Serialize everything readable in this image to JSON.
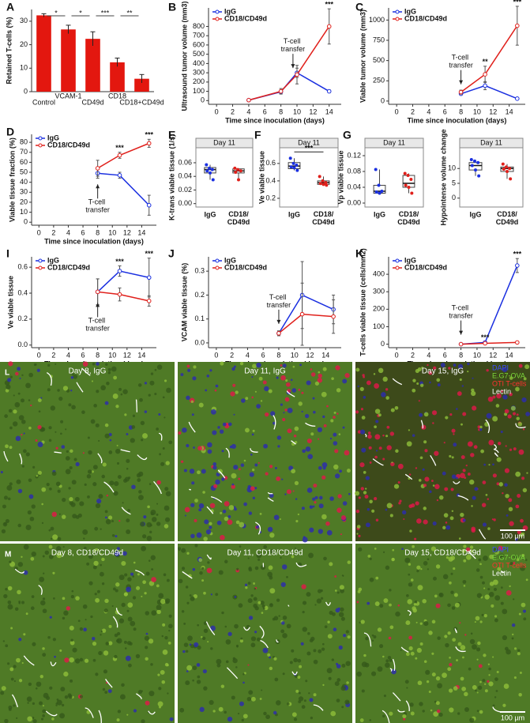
{
  "chart_data": [
    {
      "type": "bar",
      "panel": "A",
      "ylabel": "Retained T-cells (%)",
      "categories": [
        "Control",
        "VCAM-1",
        "CD49d",
        "CD18",
        "CD18+CD49d"
      ],
      "values": [
        32.5,
        26.5,
        22.5,
        12.5,
        5.5
      ],
      "errors": [
        0.7,
        1.8,
        3,
        1.8,
        1.8
      ],
      "color": "#e3170f",
      "ylim": [
        0,
        35
      ],
      "yticks": [
        0,
        10,
        20,
        30
      ],
      "significance": [
        {
          "from": 0,
          "to": 1,
          "label": "*"
        },
        {
          "from": 1,
          "to": 2,
          "label": "*"
        },
        {
          "from": 2,
          "to": 3,
          "label": "***"
        },
        {
          "from": 3,
          "to": 4,
          "label": "**"
        }
      ]
    },
    {
      "type": "line",
      "panel": "B",
      "ylabel": "Ultrasound tumor volume (mm3)",
      "xlabel": "Time since inoculation (days)",
      "xlim": [
        -1,
        15.5
      ],
      "xticks": [
        0,
        2,
        4,
        6,
        8,
        10,
        12,
        14
      ],
      "ylim": [
        -40,
        1000
      ],
      "yticks": [
        0,
        100,
        200,
        300,
        400,
        500,
        600,
        700,
        800
      ],
      "legend": "upper left",
      "series": [
        {
          "name": "IgG",
          "color": "#1a2fe0",
          "x": [
            4,
            8,
            10,
            14
          ],
          "values": [
            5,
            95,
            300,
            100
          ],
          "errors": [
            2,
            20,
            50,
            15
          ]
        },
        {
          "name": "CD18/CD49d",
          "color": "#e0201b",
          "x": [
            4,
            8,
            10,
            14
          ],
          "values": [
            5,
            100,
            280,
            800
          ],
          "errors": [
            2,
            30,
            100,
            190
          ]
        }
      ],
      "stars": [
        {
          "x": 14,
          "label": "***"
        }
      ],
      "annotation": {
        "x": 9.5,
        "label": "T-cell transfer"
      }
    },
    {
      "type": "line",
      "panel": "C",
      "ylabel": "Viable tumor volume (mm3)",
      "xlabel": "Time since inoculation (days)",
      "xlim": [
        -1,
        16
      ],
      "xticks": [
        0,
        2,
        4,
        6,
        8,
        10,
        12,
        14
      ],
      "ylim": [
        -40,
        1150
      ],
      "yticks": [
        0,
        250,
        500,
        750,
        1000
      ],
      "legend": "upper left",
      "series": [
        {
          "name": "IgG",
          "color": "#1a2fe0",
          "x": [
            8,
            11,
            15
          ],
          "values": [
            90,
            190,
            30
          ],
          "errors": [
            15,
            50,
            15
          ]
        },
        {
          "name": "CD18/CD49d",
          "color": "#e0201b",
          "x": [
            8,
            11,
            15
          ],
          "values": [
            110,
            330,
            930
          ],
          "errors": [
            25,
            100,
            240
          ]
        }
      ],
      "stars": [
        {
          "x": 11,
          "label": "**"
        },
        {
          "x": 15,
          "label": "***"
        }
      ],
      "annotation": {
        "x": 8,
        "label": "T-cell transfer"
      }
    },
    {
      "type": "line",
      "panel": "D",
      "ylabel": "Viable tissue fraction (%)",
      "xlabel": "Time since inoculation (days)",
      "xlim": [
        -1,
        16
      ],
      "xticks": [
        0,
        2,
        4,
        6,
        8,
        10,
        12,
        14
      ],
      "ylim": [
        -3,
        88
      ],
      "yticks": [
        0,
        10,
        20,
        30,
        40,
        50,
        60,
        70,
        80
      ],
      "legend": "upper left",
      "series": [
        {
          "name": "IgG",
          "color": "#1a2fe0",
          "x": [
            8,
            11,
            15
          ],
          "values": [
            49,
            47,
            17
          ],
          "errors": [
            5,
            3,
            10
          ]
        },
        {
          "name": "CD18/CD49d",
          "color": "#e0201b",
          "x": [
            8,
            11,
            15
          ],
          "values": [
            54,
            67,
            79
          ],
          "errors": [
            8,
            3,
            4
          ]
        }
      ],
      "stars": [
        {
          "x": 11,
          "label": "***"
        },
        {
          "x": 15,
          "label": "***"
        }
      ],
      "annotation": {
        "x": 8,
        "label": "T-cell transfer",
        "arrow": "up"
      }
    },
    {
      "type": "box",
      "panel": "E",
      "title": "Day 11",
      "ylabel": "K-trans viable tissue (1/s)",
      "categories": [
        "IgG",
        "CD18/CD49d"
      ],
      "colors": [
        "#1a2fe0",
        "#e0201b"
      ],
      "ylim": [
        -0.005,
        0.082
      ],
      "yticks": [
        {
          "value": 0,
          "label": "0.00"
        },
        {
          "value": 0.02,
          "label": "0.02"
        },
        {
          "value": 0.04,
          "label": "0.04"
        },
        {
          "value": 0.06,
          "label": "0.06"
        }
      ],
      "boxes": [
        {
          "min": 0.035,
          "q1": 0.045,
          "median": 0.05,
          "q3": 0.053,
          "max": 0.057
        },
        {
          "min": 0.035,
          "q1": 0.045,
          "median": 0.048,
          "q3": 0.051,
          "max": 0.052
        }
      ],
      "points": [
        [
          0.057,
          0.052,
          0.05,
          0.048,
          0.045,
          0.035
        ],
        [
          0.052,
          0.05,
          0.048,
          0.046,
          0.035
        ]
      ]
    },
    {
      "type": "box",
      "panel": "F",
      "title": "Day 11",
      "ylabel": "Ve viable tissue",
      "categories": [
        "IgG",
        "CD18/CD49d"
      ],
      "colors": [
        "#1a2fe0",
        "#e0201b"
      ],
      "ylim": [
        0.1,
        0.78
      ],
      "yticks": [
        0.2,
        0.4,
        0.6
      ],
      "boxes": [
        {
          "min": 0.52,
          "q1": 0.54,
          "median": 0.57,
          "q3": 0.61,
          "max": 0.66
        },
        {
          "min": 0.35,
          "q1": 0.36,
          "median": 0.38,
          "q3": 0.4,
          "max": 0.45
        }
      ],
      "points": [
        [
          0.66,
          0.6,
          0.58,
          0.56,
          0.55,
          0.52
        ],
        [
          0.45,
          0.4,
          0.38,
          0.37,
          0.36,
          0.35
        ]
      ],
      "significance": [
        {
          "from": 0,
          "to": 1,
          "label": "***"
        }
      ]
    },
    {
      "type": "box",
      "panel": "G",
      "title": "Day 11",
      "ylabel": "Vp viable tissue",
      "categories": [
        "IgG",
        "CD18/CD49d"
      ],
      "colors": [
        "#1a2fe0",
        "#e0201b"
      ],
      "ylim": [
        -0.01,
        0.14
      ],
      "yticks": [
        {
          "value": 0,
          "label": "0.00"
        },
        {
          "value": 0.04,
          "label": "0.04"
        },
        {
          "value": 0.08,
          "label": "0.08"
        },
        {
          "value": 0.12,
          "label": "0.12"
        }
      ],
      "boxes": [
        {
          "min": 0.025,
          "q1": 0.025,
          "median": 0.03,
          "q3": 0.045,
          "max": 0.085
        },
        {
          "min": 0.025,
          "q1": 0.04,
          "median": 0.05,
          "q3": 0.07,
          "max": 0.075
        }
      ],
      "points": [
        [
          0.085,
          0.045,
          0.03,
          0.028,
          0.025
        ],
        [
          0.075,
          0.07,
          0.06,
          0.045,
          0.04,
          0.025
        ]
      ]
    },
    {
      "type": "box",
      "title": "Day 11",
      "ylabel": "Hypointense volume change",
      "categories": [
        "IgG",
        "CD18/CD49d"
      ],
      "colors": [
        "#1a2fe0",
        "#e0201b"
      ],
      "ylim": [
        -3,
        17
      ],
      "yticks": [
        0,
        5,
        10
      ],
      "boxes": [
        {
          "min": 7.5,
          "q1": 9.5,
          "median": 11,
          "q3": 12,
          "max": 13
        },
        {
          "min": 6.5,
          "q1": 9,
          "median": 10,
          "q3": 10.5,
          "max": 11.5
        }
      ],
      "points": [
        [
          13,
          12.5,
          12,
          11,
          9.5,
          7.5
        ],
        [
          11.5,
          10.5,
          10,
          9.8,
          9,
          6.5
        ]
      ]
    },
    {
      "type": "line",
      "panel": "I",
      "ylabel": "Ve viable tissue",
      "xlabel": "Time since inoculation (days)",
      "xlim": [
        -1,
        16
      ],
      "xticks": [
        0,
        2,
        4,
        6,
        8,
        10,
        12,
        14
      ],
      "ylim": [
        -0.02,
        0.68
      ],
      "yticks": [
        {
          "value": 0,
          "label": "0.0"
        },
        0.2,
        0.4,
        0.6
      ],
      "legend": "upper left",
      "series": [
        {
          "name": "IgG",
          "color": "#1a2fe0",
          "x": [
            8,
            11,
            15
          ],
          "values": [
            0.41,
            0.57,
            0.52
          ],
          "errors": [
            0.1,
            0.04,
            0.15
          ]
        },
        {
          "name": "CD18/CD49d",
          "color": "#e0201b",
          "x": [
            8,
            11,
            15
          ],
          "values": [
            0.41,
            0.39,
            0.34
          ],
          "errors": [
            0.1,
            0.05,
            0.04
          ]
        }
      ],
      "stars": [
        {
          "x": 11,
          "label": "***"
        },
        {
          "x": 15,
          "label": "***"
        }
      ],
      "annotation": {
        "x": 8,
        "label": "T-cell transfer",
        "arrow": "up"
      }
    },
    {
      "type": "line",
      "panel": "J",
      "ylabel": "VCAM viable tissue (%)",
      "xlabel": "Time since inoculation (days)",
      "xlim": [
        -1,
        16
      ],
      "xticks": [
        0,
        2,
        4,
        6,
        8,
        10,
        12,
        14
      ],
      "ylim": [
        -0.02,
        0.36
      ],
      "yticks": [
        {
          "value": 0,
          "label": "0.0"
        },
        0.1,
        0.2,
        0.3
      ],
      "legend": "upper left",
      "series": [
        {
          "name": "IgG",
          "color": "#1a2fe0",
          "x": [
            8,
            11,
            15
          ],
          "values": [
            0.04,
            0.2,
            0.14
          ],
          "errors": [
            0.01,
            0.14,
            0.06
          ]
        },
        {
          "name": "CD18/CD49d",
          "color": "#e0201b",
          "x": [
            8,
            11,
            15
          ],
          "values": [
            0.04,
            0.12,
            0.11
          ],
          "errors": [
            0.01,
            0.13,
            0.07
          ]
        }
      ],
      "stars": [],
      "annotation": {
        "x": 8,
        "label": "T-cell transfer"
      }
    },
    {
      "type": "line",
      "panel": "K",
      "ylabel": "T-cells viable tissue (cells/mm2)",
      "xlabel": "Time since inoculation (days)",
      "xlim": [
        -1,
        16
      ],
      "xticks": [
        0,
        2,
        4,
        6,
        8,
        10,
        12,
        14
      ],
      "ylim": [
        -20,
        500
      ],
      "yticks": [
        0,
        100,
        200,
        300,
        400
      ],
      "legend": "upper left",
      "series": [
        {
          "name": "IgG",
          "color": "#1a2fe0",
          "x": [
            8,
            11,
            15
          ],
          "values": [
            0,
            10,
            450
          ],
          "errors": [
            2,
            4,
            40
          ]
        },
        {
          "name": "CD18/CD49d",
          "color": "#e0201b",
          "x": [
            8,
            11,
            15
          ],
          "values": [
            0,
            5,
            10
          ],
          "errors": [
            2,
            2,
            3
          ]
        }
      ],
      "stars": [
        {
          "x": 11,
          "label": "***"
        },
        {
          "x": 15,
          "label": "***"
        }
      ],
      "annotation": {
        "x": 8,
        "label": "T-cell transfer"
      }
    }
  ],
  "figure_images": {
    "rows": [
      {
        "panel": "L",
        "tiles": [
          "Day 8, IgG",
          "Day 11, IgG",
          "Day 15, IgG"
        ],
        "legend": [
          "DAPI",
          "E.G7-OVA",
          "OTI T-cells",
          "Lectin"
        ],
        "scale": "100 µm"
      },
      {
        "panel": "M",
        "tiles": [
          "Day 8, CD18/CD49d",
          "Day 11, CD18/CD49d",
          "Day 15, CD18/CD49d"
        ],
        "legend": [
          "DAPI",
          "E.G7-OVA",
          "OTI T-cells",
          "Lectin"
        ],
        "scale": "100 µm"
      }
    ]
  }
}
